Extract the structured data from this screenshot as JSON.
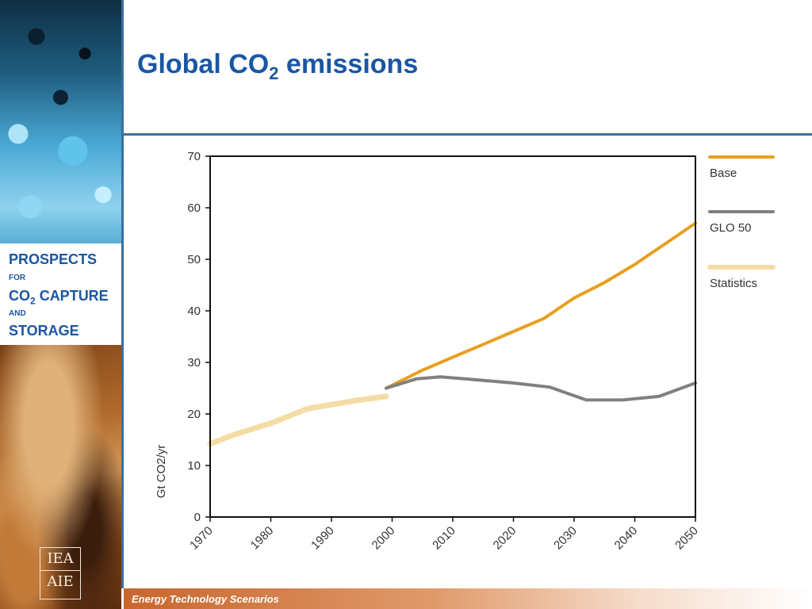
{
  "slide": {
    "title_main": "Global CO",
    "title_sub": "2",
    "title_end": " emissions",
    "footer": "Energy Technology Scenarios"
  },
  "sidebar": {
    "line1": "PROSPECTS",
    "line2": "FOR",
    "line3_a": "CO",
    "line3_sub": "2",
    "line3_b": " CAPTURE",
    "line4": "AND",
    "line5": "STORAGE",
    "logo_top": "IEA",
    "logo_bottom": "AIE"
  },
  "chart_data": {
    "type": "line",
    "ylabel": "Gt CO2/yr",
    "xlim": [
      1970,
      2050
    ],
    "ylim": [
      0,
      70
    ],
    "xticks": [
      1970,
      1980,
      1990,
      2000,
      2010,
      2020,
      2030,
      2040,
      2050
    ],
    "yticks": [
      0,
      10,
      20,
      30,
      40,
      50,
      60,
      70
    ],
    "legend_position": "right",
    "series": [
      {
        "name": "Base",
        "color": "#e8a020",
        "x": [
          1999,
          2005,
          2010,
          2015,
          2020,
          2025,
          2030,
          2035,
          2040,
          2045,
          2050
        ],
        "y": [
          25,
          28.5,
          31,
          33.5,
          36,
          38.5,
          42.5,
          45.5,
          49,
          53,
          57
        ]
      },
      {
        "name": "GLO 50",
        "color": "#808080",
        "x": [
          1999,
          2004,
          2008,
          2012,
          2016,
          2020,
          2026,
          2032,
          2038,
          2044,
          2050
        ],
        "y": [
          25,
          26.8,
          27.2,
          26.8,
          26.4,
          26,
          25.2,
          22.7,
          22.7,
          23.4,
          26
        ]
      },
      {
        "name": "Statistics",
        "color": "#f5dca6",
        "x": [
          1970,
          1974,
          1980,
          1986,
          1990,
          1994,
          1999
        ],
        "y": [
          14.2,
          16,
          18.2,
          21,
          21.8,
          22.6,
          23.4
        ]
      }
    ]
  }
}
